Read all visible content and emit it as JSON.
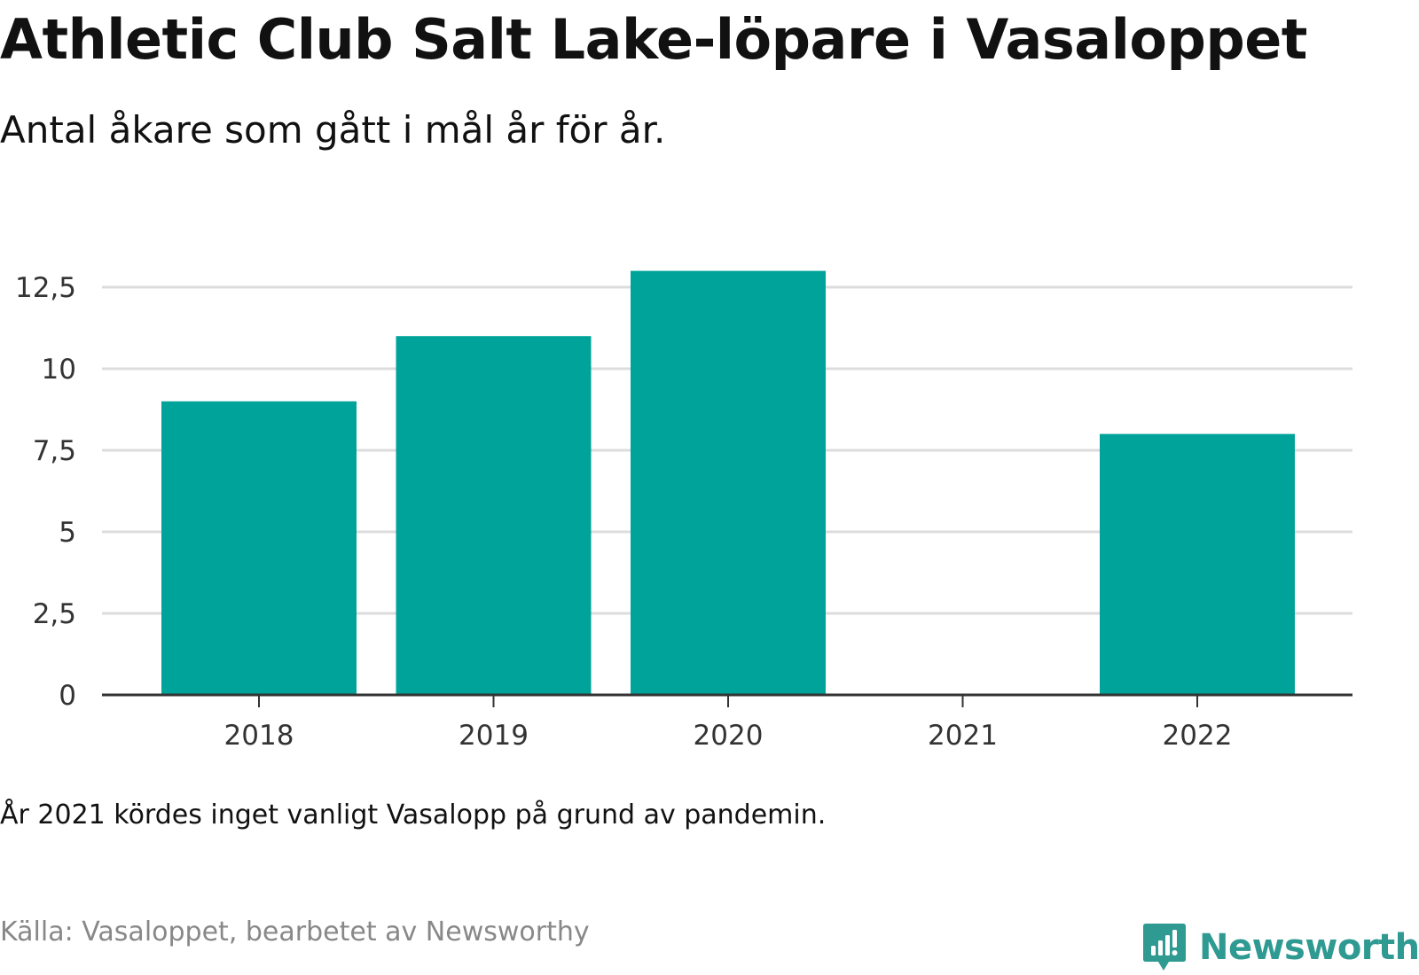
{
  "title": "Athletic Club Salt Lake-löpare i Vasaloppet",
  "subtitle": "Antal åkare som gått i mål år för år.",
  "note": "År 2021 kördes inget vanligt Vasalopp på grund av pandemin.",
  "source": "Källa: Vasaloppet, bearbetet av Newsworthy",
  "brand": {
    "name": "Newsworthy",
    "icon": "newsworthy-logo-icon",
    "color": "#2f9a92"
  },
  "colors": {
    "bar": "#00a39a",
    "grid": "#dcdcdc",
    "axis": "#333333"
  },
  "chart_data": {
    "type": "bar",
    "categories": [
      "2018",
      "2019",
      "2020",
      "2021",
      "2022"
    ],
    "values": [
      9,
      11,
      13,
      0,
      8
    ],
    "ylim": [
      0,
      12.5
    ],
    "yticks": [
      0,
      2.5,
      5,
      7.5,
      10,
      12.5
    ],
    "ytick_labels": [
      "0",
      "2,5",
      "5",
      "7,5",
      "10",
      "12,5"
    ],
    "grid": true
  }
}
